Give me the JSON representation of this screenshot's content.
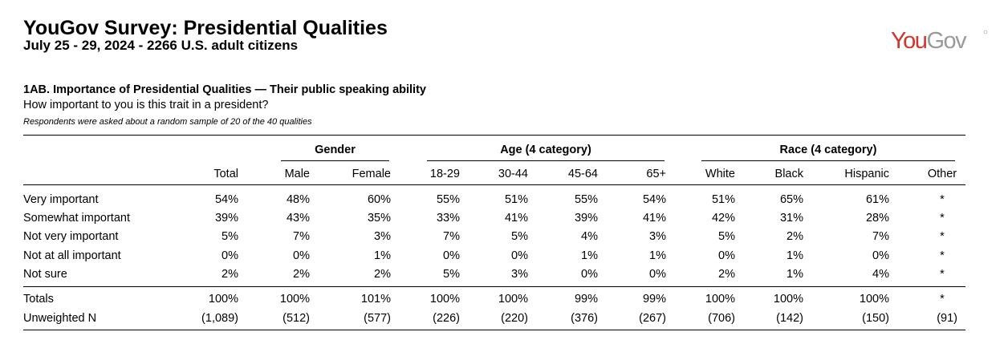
{
  "header": {
    "title": "YouGov Survey: Presidential Qualities",
    "subtitle": "July 25 - 29, 2024 - 2266 U.S. adult citizens",
    "logo_text": "YouGov",
    "logo_color_you": "#d2352c",
    "logo_color_gov": "#9a9a9a"
  },
  "question": {
    "title": "1AB. Importance of Presidential Qualities — Their public speaking ability",
    "text": "How important to you is this trait in a president?",
    "note": "Respondents were asked about a random sample of 20 of the 40 qualities"
  },
  "groups": {
    "gender": "Gender",
    "age": "Age (4 category)",
    "race": "Race (4 category)"
  },
  "columns": [
    "Total",
    "Male",
    "Female",
    "18-29",
    "30-44",
    "45-64",
    "65+",
    "White",
    "Black",
    "Hispanic",
    "Other"
  ],
  "rows": [
    {
      "label": "Very important",
      "values": [
        "54%",
        "48%",
        "60%",
        "55%",
        "51%",
        "55%",
        "54%",
        "51%",
        "65%",
        "61%",
        "*"
      ]
    },
    {
      "label": "Somewhat important",
      "values": [
        "39%",
        "43%",
        "35%",
        "33%",
        "41%",
        "39%",
        "41%",
        "42%",
        "31%",
        "28%",
        "*"
      ]
    },
    {
      "label": "Not very important",
      "values": [
        "5%",
        "7%",
        "3%",
        "7%",
        "5%",
        "4%",
        "3%",
        "5%",
        "2%",
        "7%",
        "*"
      ]
    },
    {
      "label": "Not at all important",
      "values": [
        "0%",
        "0%",
        "1%",
        "0%",
        "0%",
        "1%",
        "1%",
        "0%",
        "1%",
        "0%",
        "*"
      ]
    },
    {
      "label": "Not sure",
      "values": [
        "2%",
        "2%",
        "2%",
        "5%",
        "3%",
        "0%",
        "0%",
        "2%",
        "1%",
        "4%",
        "*"
      ]
    }
  ],
  "totals": [
    {
      "label": "Totals",
      "values": [
        "100%",
        "100%",
        "101%",
        "100%",
        "100%",
        "99%",
        "99%",
        "100%",
        "100%",
        "100%",
        "*"
      ]
    },
    {
      "label": "Unweighted N",
      "values": [
        "(1,089)",
        "(512)",
        "(577)",
        "(226)",
        "(220)",
        "(376)",
        "(267)",
        "(706)",
        "(142)",
        "(150)",
        "(91)"
      ]
    }
  ]
}
